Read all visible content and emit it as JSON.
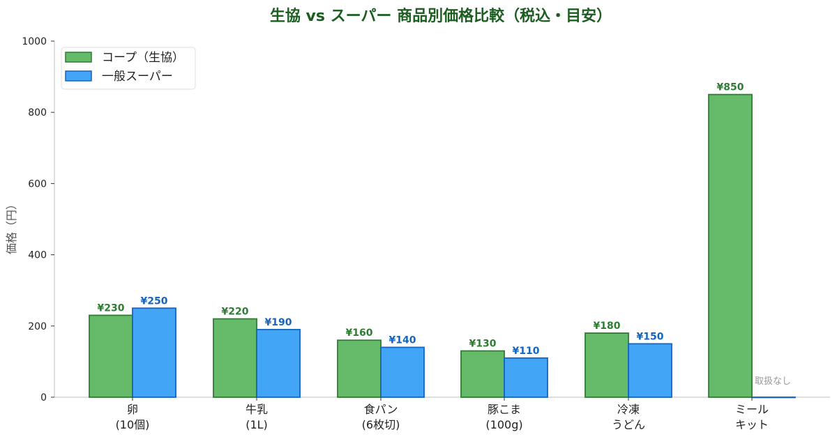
{
  "chart_data": {
    "type": "bar",
    "title": "生協 vs スーパー 商品別価格比較（税込・目安）",
    "xlabel": "",
    "ylabel": "価格（円）",
    "ylim": [
      0,
      1000
    ],
    "yticks": [
      0,
      200,
      400,
      600,
      800,
      1000
    ],
    "grid": false,
    "legend_position": "upper left",
    "categories": [
      "卵\n(10個)",
      "牛乳\n(1L)",
      "食パン\n(6枚切)",
      "豚こま\n(100g)",
      "冷凍\nうどん",
      "ミール\nキット"
    ],
    "series": [
      {
        "name": "コープ（生協）",
        "color": "#66bb6a",
        "edge_color": "#2e7d32",
        "label_color": "#2e7d32",
        "values": [
          230,
          220,
          160,
          130,
          180,
          850
        ],
        "labels": [
          "¥230",
          "¥220",
          "¥160",
          "¥130",
          "¥180",
          "¥850"
        ]
      },
      {
        "name": "一般スーパー",
        "color": "#42a5f5",
        "edge_color": "#1565c0",
        "label_color": "#1565c0",
        "values": [
          250,
          190,
          140,
          110,
          150,
          0
        ],
        "labels": [
          "¥250",
          "¥190",
          "¥140",
          "¥110",
          "¥150",
          ""
        ]
      }
    ],
    "annotations": [
      {
        "category_index": 5,
        "series_index": 1,
        "text": "取扱なし"
      }
    ]
  },
  "title": "生協 vs スーパー 商品別価格比較（税込・目安）",
  "yaxis": {
    "label": "価格（円）",
    "ticks": [
      "0",
      "200",
      "400",
      "600",
      "800",
      "1000"
    ]
  },
  "legend": {
    "items": [
      {
        "label": "コープ（生協）"
      },
      {
        "label": "一般スーパー"
      }
    ]
  },
  "categories": [
    {
      "line1": "卵",
      "line2": "(10個)"
    },
    {
      "line1": "牛乳",
      "line2": "(1L)"
    },
    {
      "line1": "食パン",
      "line2": "(6枚切)"
    },
    {
      "line1": "豚こま",
      "line2": "(100g)"
    },
    {
      "line1": "冷凍",
      "line2": "うどん"
    },
    {
      "line1": "ミール",
      "line2": "キット"
    }
  ],
  "note": "取扱なし"
}
